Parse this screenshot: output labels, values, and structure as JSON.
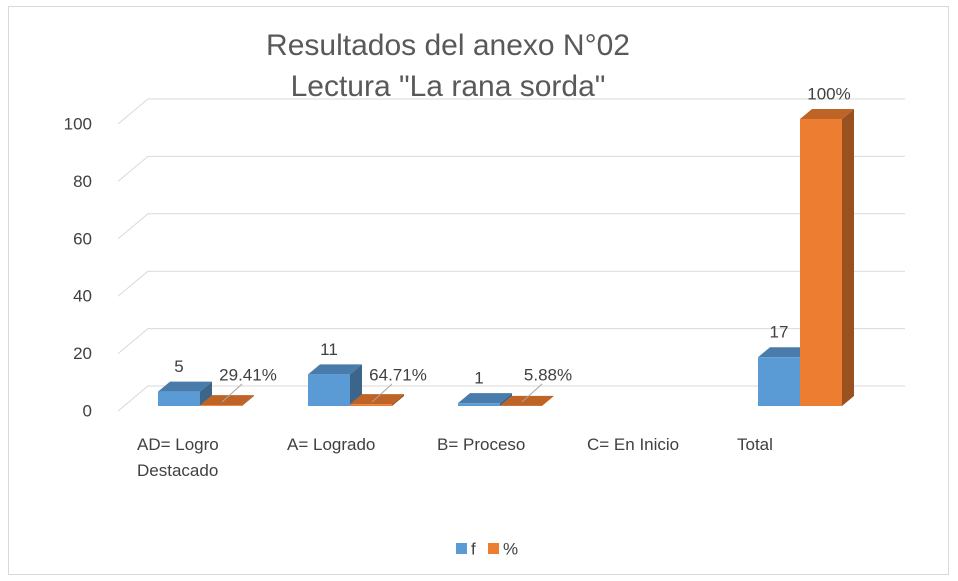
{
  "chart_data": {
    "type": "bar3d",
    "title": "Resultados del anexo N°02",
    "subtitle": "Lectura \"La rana sorda\"",
    "categories": [
      "AD= Logro Destacado",
      "A= Logrado",
      "B= Proceso",
      "C= En Inicio",
      "Total"
    ],
    "series": [
      {
        "name": "f",
        "color": "#5b9bd5",
        "values": [
          5,
          11,
          1,
          null,
          17
        ]
      },
      {
        "name": "%",
        "color": "#ed7d31",
        "values": [
          0.2941,
          0.6471,
          0.0588,
          null,
          100
        ],
        "value_labels": [
          "29.41%",
          "64.71%",
          "5.88%",
          null,
          "100%"
        ]
      }
    ],
    "ylim": [
      0,
      100
    ],
    "yticks": [
      0,
      20,
      40,
      60,
      80,
      100
    ],
    "grid": true,
    "legend": "bottom"
  }
}
